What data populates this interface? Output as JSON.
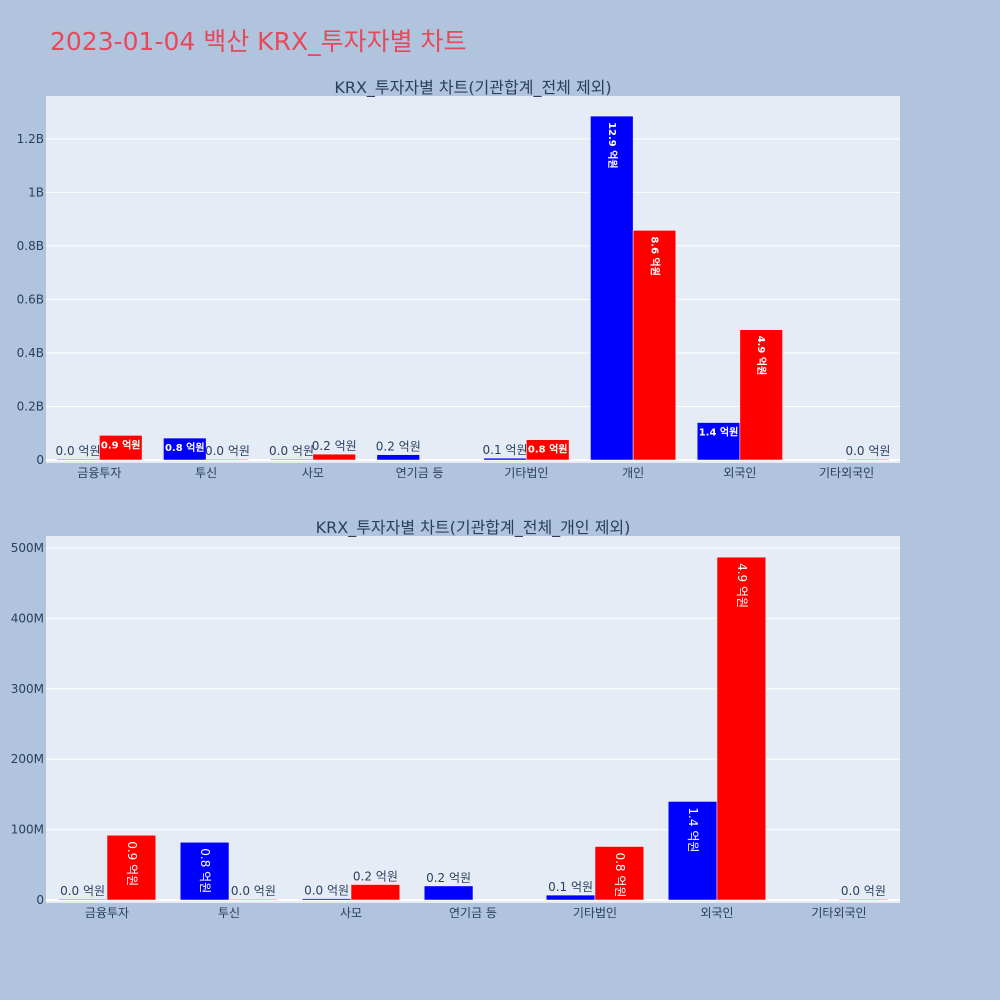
{
  "page_title": "2023-01-04 백산 KRX_투자자별 차트",
  "colors": {
    "buy": "#0000ff",
    "sell": "#ff0000",
    "background": "#b0c4de",
    "plot_background": "#e5ecf6",
    "title": "#e8495a"
  },
  "chart_data": [
    {
      "type": "bar",
      "title": "KRX_투자자별 차트(기관합계_전체 제외)",
      "categories": [
        "금융투자",
        "투신",
        "사모",
        "연기금 등",
        "기타법인",
        "개인",
        "외국인",
        "기타외국인"
      ],
      "y_tick_labels": [
        "0",
        "0.2B",
        "0.4B",
        "0.6B",
        "0.8B",
        "1B",
        "1.2B"
      ],
      "y_tick_values": [
        0,
        200000000,
        400000000,
        600000000,
        800000000,
        1000000000,
        1200000000
      ],
      "ylim": [
        0,
        1360000000
      ],
      "series": [
        {
          "color": "#0000ff",
          "values": [
            1000000,
            82000000,
            2000000,
            20000000,
            7000000,
            1285000000,
            140000000,
            null
          ],
          "labels": [
            "0.0 억원",
            "0.8 억원",
            "0.0 억원",
            "0.2 억원",
            "0.1 억원",
            "12.9 억원",
            "1.4 억원",
            null
          ]
        },
        {
          "color": "#ff0000",
          "values": [
            92000000,
            1000000,
            22000000,
            null,
            76000000,
            858000000,
            487000000,
            1000000
          ],
          "labels": [
            "0.9 억원",
            "0.0 억원",
            "0.2 억원",
            null,
            "0.8 억원",
            "8.6 억원",
            "4.9 억원",
            "0.0 억원"
          ]
        }
      ]
    },
    {
      "type": "bar",
      "title": "KRX_투자자별 차트(기관합계_전체_개인 제외)",
      "categories": [
        "금융투자",
        "투신",
        "사모",
        "연기금 등",
        "기타법인",
        "외국인",
        "기타외국인"
      ],
      "y_tick_labels": [
        "0",
        "100M",
        "200M",
        "300M",
        "400M",
        "500M"
      ],
      "y_tick_values": [
        0,
        100000000,
        200000000,
        300000000,
        400000000,
        500000000
      ],
      "ylim": [
        0,
        517000000
      ],
      "series": [
        {
          "color": "#0000ff",
          "values": [
            1000000,
            82000000,
            2000000,
            20000000,
            7000000,
            140000000,
            null
          ],
          "labels": [
            "0.0 억원",
            "0.8 억원",
            "0.0 억원",
            "0.2 억원",
            "0.1 억원",
            "1.4 억원",
            null
          ]
        },
        {
          "color": "#ff0000",
          "values": [
            92000000,
            1000000,
            22000000,
            null,
            76000000,
            487000000,
            1000000
          ],
          "labels": [
            "0.9 억원",
            "0.0 억원",
            "0.2 억원",
            null,
            "0.8 억원",
            "4.9 억원",
            "0.0 억원"
          ]
        }
      ]
    }
  ]
}
